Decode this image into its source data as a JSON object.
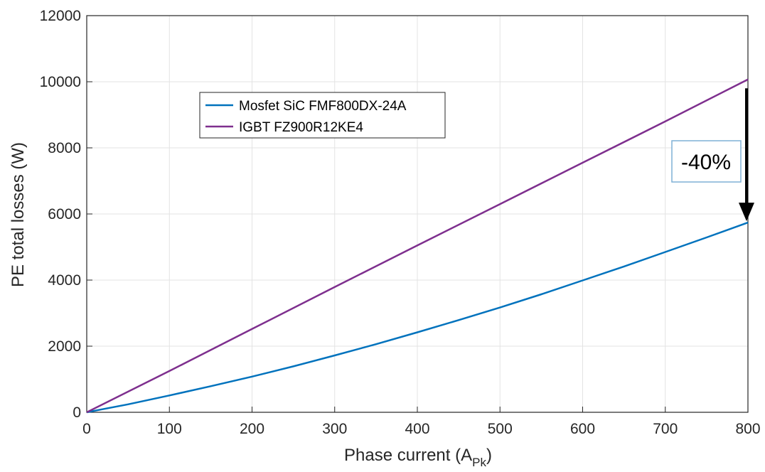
{
  "chart_data": {
    "type": "line",
    "title": "",
    "xlabel": "Phase current (A",
    "xlabel_sub": "Pk",
    "xlabel_close": ")",
    "ylabel": "PE total losses (W)",
    "xlim": [
      0,
      800
    ],
    "ylim": [
      0,
      12000
    ],
    "xticks": [
      "0",
      "100",
      "200",
      "300",
      "400",
      "500",
      "600",
      "700",
      "800"
    ],
    "yticks": [
      "0",
      "2000",
      "4000",
      "6000",
      "8000",
      "10000",
      "12000"
    ],
    "grid": true,
    "legend_position": "upper-left-inside",
    "series": [
      {
        "name": "Mosfet SiC FMF800DX-24A",
        "color": "#0072BD",
        "x": [
          0,
          50,
          100,
          150,
          200,
          250,
          300,
          350,
          400,
          450,
          500,
          550,
          600,
          650,
          700,
          750,
          800
        ],
        "y": [
          0,
          240,
          510,
          790,
          1080,
          1390,
          1720,
          2060,
          2420,
          2790,
          3170,
          3570,
          3990,
          4410,
          4850,
          5290,
          5740
        ]
      },
      {
        "name": "IGBT FZ900R12KE4",
        "color": "#7E2F8E",
        "x": [
          0,
          100,
          200,
          300,
          400,
          500,
          600,
          700,
          800
        ],
        "y": [
          0,
          1250,
          2520,
          3790,
          5050,
          6300,
          7550,
          8800,
          10070
        ]
      }
    ],
    "annotations": [
      {
        "text": "-40%",
        "type": "arrow",
        "x": 800,
        "y_from": 9800,
        "y_to": 5740
      }
    ]
  }
}
